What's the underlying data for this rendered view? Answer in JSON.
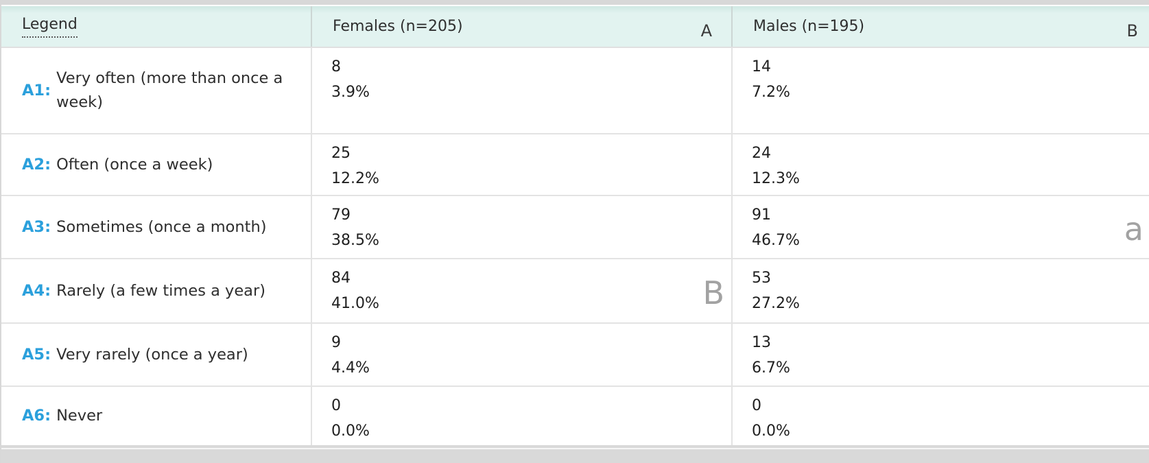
{
  "header": {
    "legend": "Legend",
    "females": "Females (n=205)",
    "females_marker": "A",
    "males": "Males (n=195)",
    "males_marker": "B"
  },
  "rows": [
    {
      "code": "A1:",
      "label": "Very often (more than once a week)",
      "f_count": "8",
      "f_pct": "3.9%",
      "m_count": "14",
      "m_pct": "7.2%"
    },
    {
      "code": "A2:",
      "label": "Often (once a week)",
      "f_count": "25",
      "f_pct": "12.2%",
      "m_count": "24",
      "m_pct": "12.3%"
    },
    {
      "code": "A3:",
      "label": "Sometimes (once a month)",
      "f_count": "79",
      "f_pct": "38.5%",
      "m_count": "91",
      "m_pct": "46.7%",
      "m_marker": "a"
    },
    {
      "code": "A4:",
      "label": "Rarely (a few times a year)",
      "f_count": "84",
      "f_pct": "41.0%",
      "f_marker": "B",
      "m_count": "53",
      "m_pct": "27.2%"
    },
    {
      "code": "A5:",
      "label": "Very rarely (once a year)",
      "f_count": "9",
      "f_pct": "4.4%",
      "m_count": "13",
      "m_pct": "6.7%"
    },
    {
      "code": "A6:",
      "label": "Never",
      "f_count": "0",
      "f_pct": "0.0%",
      "m_count": "0",
      "m_pct": "0.0%"
    }
  ],
  "colors": {
    "accent_blue": "#2ba0dc",
    "header_bg": "#e2f3f0",
    "significance_marker_grey": "#a2a2a2",
    "strip_grey": "#d8d8d8"
  }
}
